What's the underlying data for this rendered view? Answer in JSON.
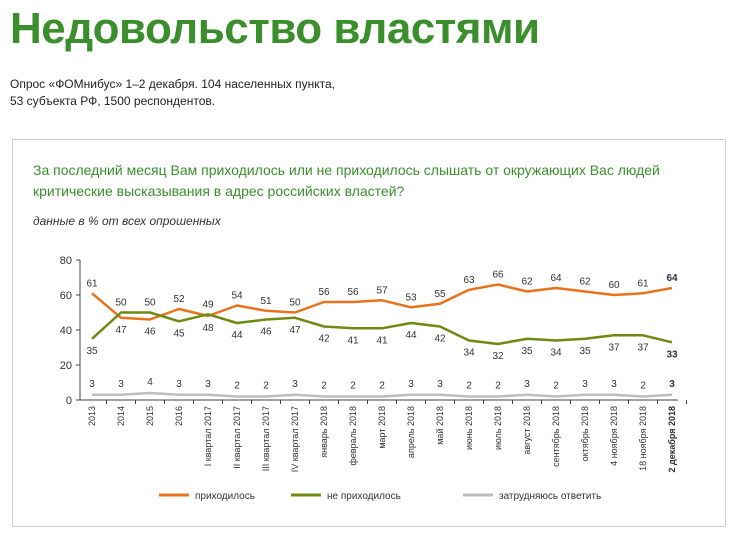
{
  "header": {
    "title": "Недовольство властями",
    "source_line1": "Опрос «ФОМнибус» 1–2 декабря. 104 населенных пункта,",
    "source_line2": "53 субъекта РФ, 1500 респондентов."
  },
  "panel": {
    "question": "За последний месяц Вам приходилось или не приходилось слышать от окружающих Вас людей критические высказывания в адрес российских властей?",
    "unit_note": "данные в % от всех опрошенных"
  },
  "chart_data": {
    "type": "line",
    "categories": [
      "2013",
      "2014",
      "2015",
      "2016",
      "I квартал 2017",
      "II квартал 2017",
      "III квартал 2017",
      "IV квартал 2017",
      "январь 2018",
      "февраль 2018",
      "март 2018",
      "апрель 2018",
      "май 2018",
      "июнь 2018",
      "июль 2018",
      "август 2018",
      "сентябрь 2018",
      "октябрь 2018",
      "4 ноября 2018",
      "18 ноября 2018",
      "2 декабря 2018"
    ],
    "ylim": [
      0,
      80
    ],
    "yticks": [
      0,
      20,
      40,
      60,
      80
    ],
    "grid": false,
    "legend_position": "bottom",
    "series": [
      {
        "name": "приходилось",
        "color": "#e8731c",
        "values": [
          61,
          47,
          46,
          52,
          48,
          54,
          51,
          50,
          56,
          56,
          57,
          53,
          55,
          63,
          66,
          62,
          64,
          62,
          60,
          61,
          64
        ]
      },
      {
        "name": "не приходилось",
        "color": "#6f8a12",
        "values": [
          35,
          50,
          50,
          45,
          49,
          44,
          46,
          47,
          42,
          41,
          41,
          44,
          42,
          34,
          32,
          35,
          34,
          35,
          37,
          37,
          33
        ]
      },
      {
        "name": "затрудняюсь ответить",
        "color": "#bdbdbd",
        "values": [
          3,
          3,
          4,
          3,
          3,
          2,
          2,
          3,
          2,
          2,
          2,
          3,
          3,
          2,
          2,
          3,
          2,
          3,
          3,
          2,
          3
        ]
      }
    ]
  }
}
